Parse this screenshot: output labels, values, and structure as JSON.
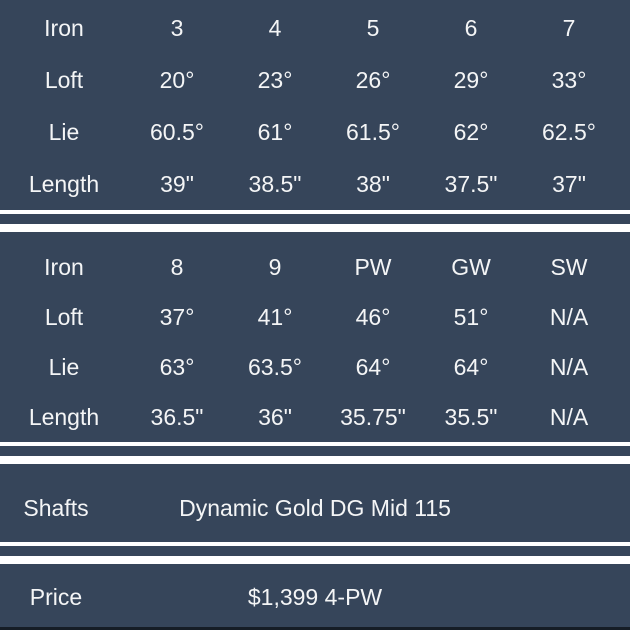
{
  "theme": {
    "background": "#36455a",
    "text": "#f4f5f6",
    "divider": "#ffffff",
    "bottom_edge": "#161d26"
  },
  "sections": [
    {
      "type": "spec-grid",
      "rows": [
        {
          "label": "Iron",
          "values": [
            "3",
            "4",
            "5",
            "6",
            "7"
          ]
        },
        {
          "label": "Loft",
          "values": [
            "20°",
            "23°",
            "26°",
            "29°",
            "33°"
          ]
        },
        {
          "label": "Lie",
          "values": [
            "60.5°",
            "61°",
            "61.5°",
            "62°",
            "62.5°"
          ]
        },
        {
          "label": "Length",
          "values": [
            "39\"",
            "38.5\"",
            "38\"",
            "37.5\"",
            "37\""
          ]
        }
      ]
    },
    {
      "type": "spec-grid",
      "rows": [
        {
          "label": "Iron",
          "values": [
            "8",
            "9",
            "PW",
            "GW",
            "SW"
          ]
        },
        {
          "label": "Loft",
          "values": [
            "37°",
            "41°",
            "46°",
            "51°",
            "N/A"
          ]
        },
        {
          "label": "Lie",
          "values": [
            "63°",
            "63.5°",
            "64°",
            "64°",
            "N/A"
          ]
        },
        {
          "label": "Length",
          "values": [
            "36.5\"",
            "36\"",
            "35.75\"",
            "35.5\"",
            "N/A"
          ]
        }
      ]
    },
    {
      "type": "info",
      "label": "Shafts",
      "value": "Dynamic Gold DG Mid 115"
    },
    {
      "type": "info",
      "label": "Price",
      "value": "$1,399 4-PW"
    }
  ]
}
